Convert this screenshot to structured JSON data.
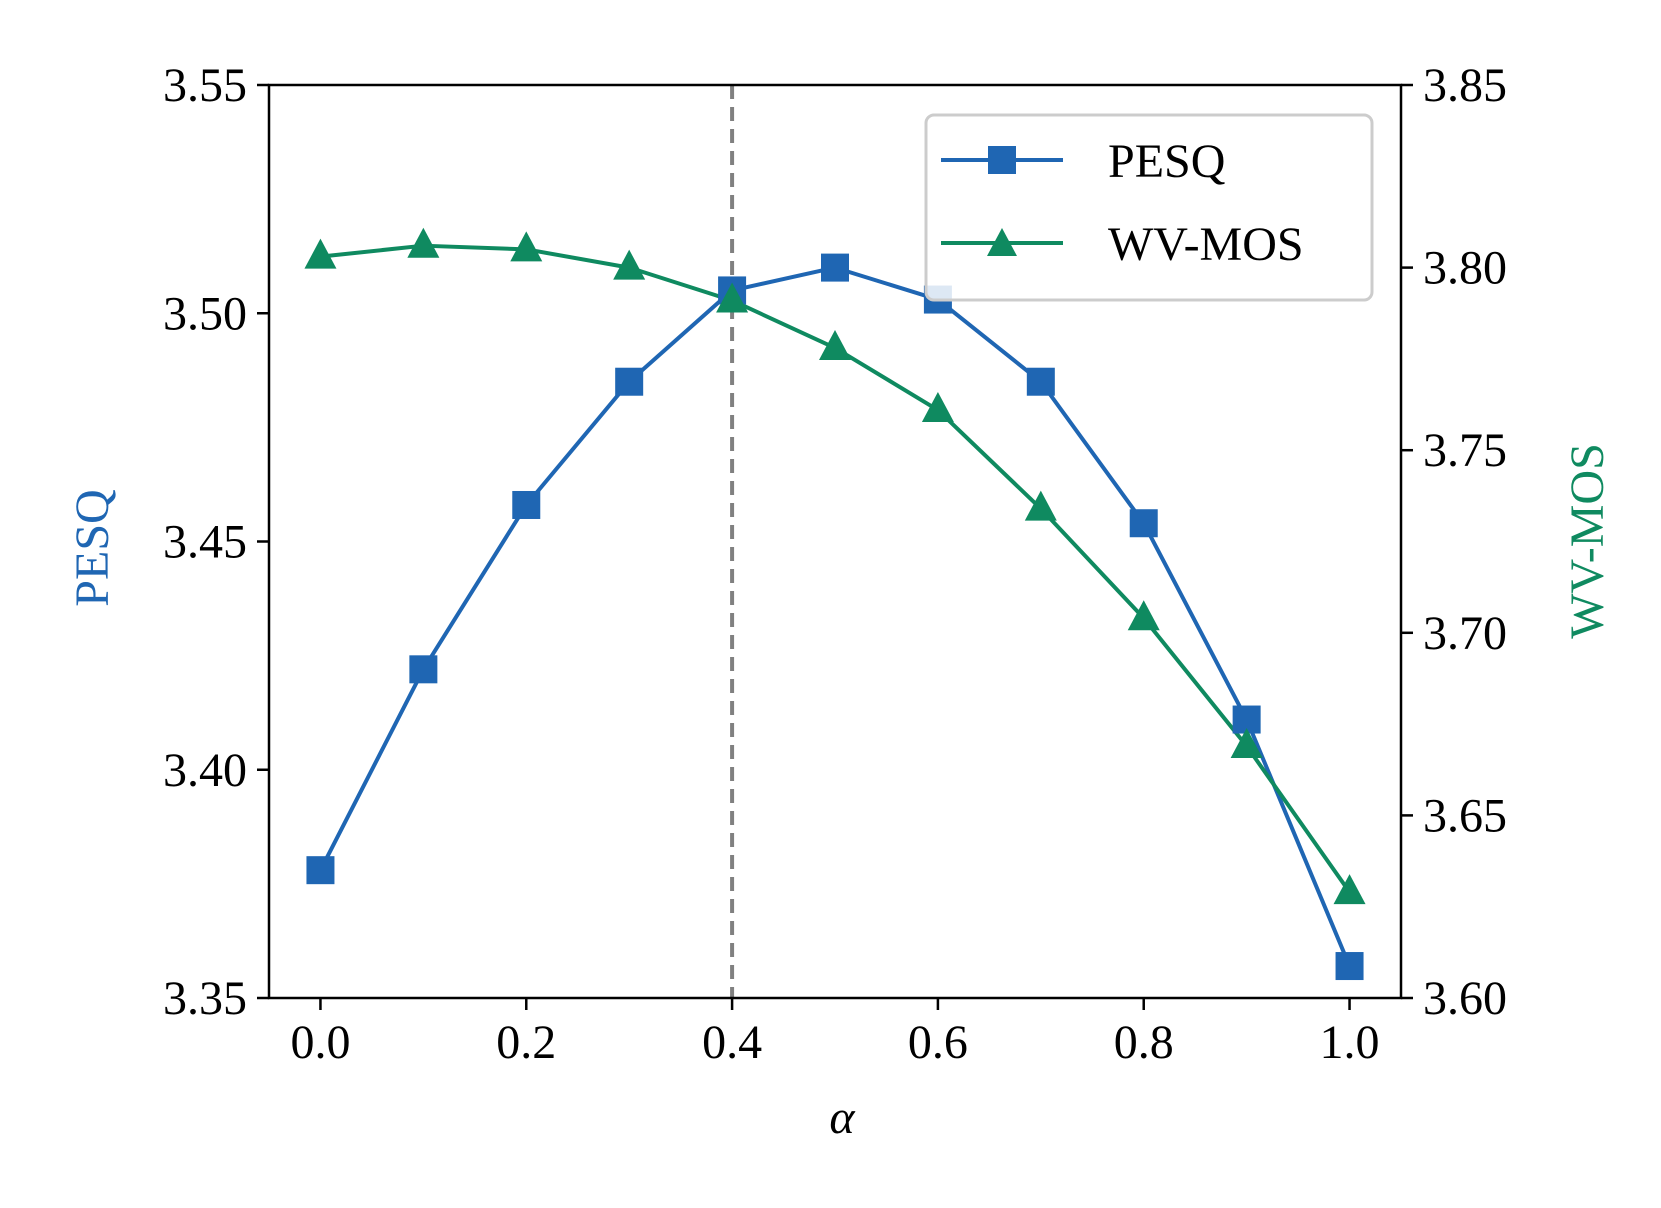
{
  "colors": {
    "pesq": "#1f66b3",
    "wvmos": "#0f8a60",
    "vline": "#808080",
    "axis": "#000000"
  },
  "chart_data": {
    "type": "line",
    "title": "",
    "xlabel": "α",
    "ylabel_left": "PESQ",
    "ylabel_right": "WV-MOS",
    "x": [
      0.0,
      0.1,
      0.2,
      0.3,
      0.4,
      0.5,
      0.6,
      0.7,
      0.8,
      0.9,
      1.0
    ],
    "xlim": [
      -0.05,
      1.05
    ],
    "xticks": [
      0.0,
      0.2,
      0.4,
      0.6,
      0.8,
      1.0
    ],
    "xtick_labels": [
      "0.0",
      "0.2",
      "0.4",
      "0.6",
      "0.8",
      "1.0"
    ],
    "ylim_left": [
      3.35,
      3.55
    ],
    "yticks_left": [
      3.35,
      3.4,
      3.45,
      3.5,
      3.55
    ],
    "ytick_labels_left": [
      "3.35",
      "3.40",
      "3.45",
      "3.50",
      "3.55"
    ],
    "ylim_right": [
      3.6,
      3.85
    ],
    "yticks_right": [
      3.6,
      3.65,
      3.7,
      3.75,
      3.8,
      3.85
    ],
    "ytick_labels_right": [
      "3.60",
      "3.65",
      "3.70",
      "3.75",
      "3.80",
      "3.85"
    ],
    "vline_x": 0.4,
    "legend_position": "top-right",
    "series": [
      {
        "name": "PESQ",
        "axis": "left",
        "marker": "square",
        "values": [
          3.378,
          3.422,
          3.458,
          3.485,
          3.505,
          3.51,
          3.503,
          3.485,
          3.454,
          3.411,
          3.357
        ]
      },
      {
        "name": "WV-MOS",
        "axis": "right",
        "marker": "triangle",
        "values": [
          3.803,
          3.806,
          3.805,
          3.8,
          3.791,
          3.778,
          3.761,
          3.734,
          3.704,
          3.669,
          3.629
        ]
      }
    ]
  }
}
